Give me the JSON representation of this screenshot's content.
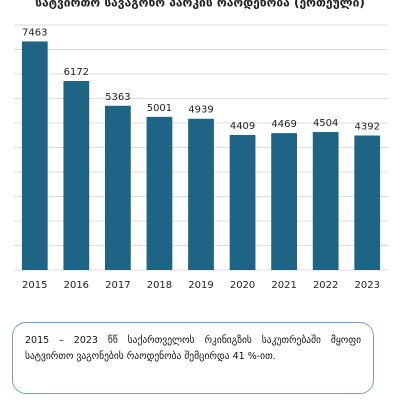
{
  "chart_data": {
    "type": "bar",
    "title": "სატვირთო სავაგონო პარკის რაოდენობა (ერთეული)",
    "categories": [
      "2015",
      "2016",
      "2017",
      "2018",
      "2019",
      "2020",
      "2021",
      "2022",
      "2023"
    ],
    "values": [
      7463,
      6172,
      5363,
      5001,
      4939,
      4409,
      4469,
      4504,
      4392
    ],
    "color": "#1d6485",
    "ylim": [
      0,
      8000
    ],
    "yticks": [
      0,
      800,
      1600,
      2400,
      3200,
      4000,
      4800,
      5600,
      6400,
      7200,
      8000
    ],
    "grid": true
  },
  "note": "2015 – 2023 წწ საქართველოს რკინიგზის საკუთრებაში მყოფი სატვირთო ვაგონების რაოდენობა შემცირდა 41 %-ით."
}
